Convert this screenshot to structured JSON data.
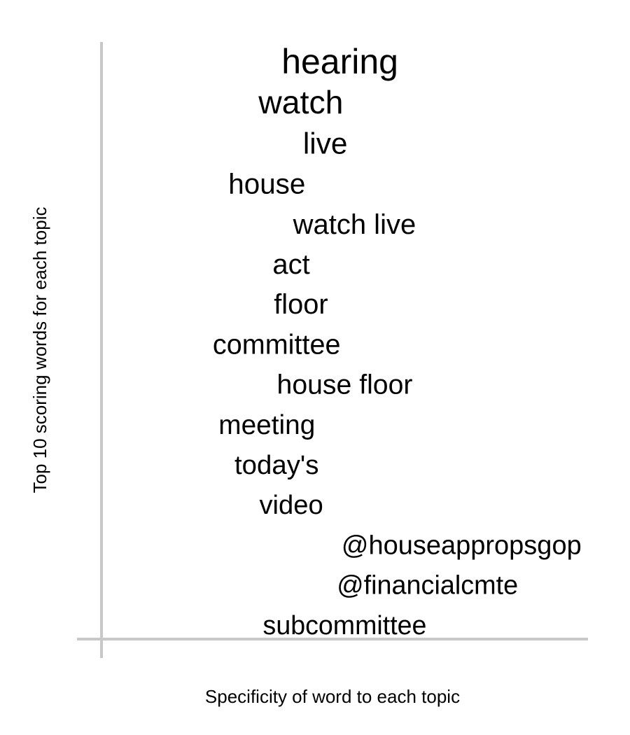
{
  "chart_data": {
    "type": "scatter",
    "title": "",
    "xlabel": "Specificity of word to each topic",
    "ylabel": "Top 10 scoring words for each topic",
    "grid": false,
    "words": [
      {
        "text": "hearing",
        "specificity": 0.49,
        "score": 1.0
      },
      {
        "text": "watch",
        "specificity": 0.41,
        "score": 0.82
      },
      {
        "text": "live",
        "specificity": 0.46,
        "score": 0.62
      },
      {
        "text": "house",
        "specificity": 0.34,
        "score": 0.52
      },
      {
        "text": "watch live",
        "specificity": 0.52,
        "score": 0.5
      },
      {
        "text": "act",
        "specificity": 0.39,
        "score": 0.5
      },
      {
        "text": "floor",
        "specificity": 0.41,
        "score": 0.49
      },
      {
        "text": "committee",
        "specificity": 0.36,
        "score": 0.48
      },
      {
        "text": "house floor",
        "specificity": 0.5,
        "score": 0.46
      },
      {
        "text": "meeting",
        "specificity": 0.34,
        "score": 0.44
      },
      {
        "text": "today's",
        "specificity": 0.36,
        "score": 0.42
      },
      {
        "text": "video",
        "specificity": 0.39,
        "score": 0.41
      },
      {
        "text": "@houseappropsgop",
        "specificity": 0.74,
        "score": 0.4
      },
      {
        "text": "@financialcmte",
        "specificity": 0.67,
        "score": 0.39
      },
      {
        "text": "subcommittee",
        "specificity": 0.5,
        "score": 0.38
      }
    ]
  }
}
